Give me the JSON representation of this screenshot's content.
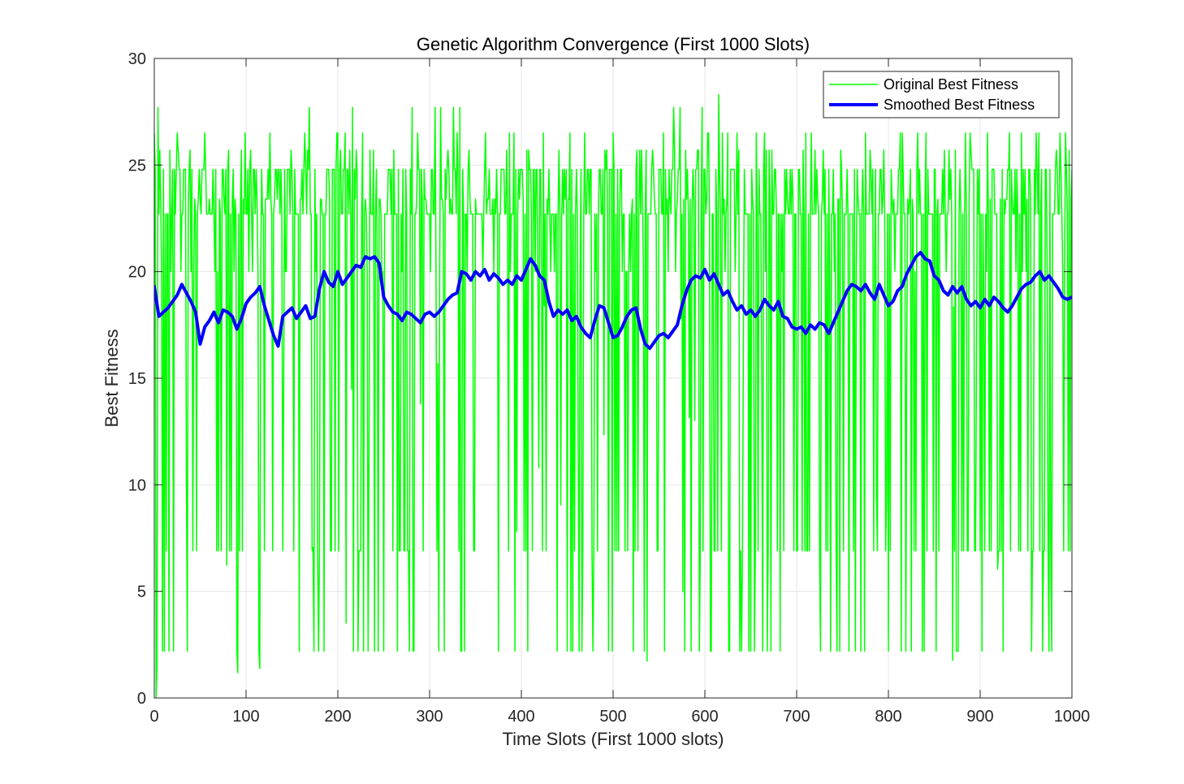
{
  "chart_data": {
    "type": "line",
    "title": "Genetic Algorithm Convergence (First 1000 Slots)",
    "xlabel": "Time Slots (First 1000 slots)",
    "ylabel": "Best Fitness",
    "xlim": [
      0,
      1000
    ],
    "ylim": [
      0,
      30
    ],
    "xticks": [
      0,
      100,
      200,
      300,
      400,
      500,
      600,
      700,
      800,
      900,
      1000
    ],
    "yticks": [
      0,
      5,
      10,
      15,
      20,
      25,
      30
    ],
    "grid": true,
    "legend_position": "top-right",
    "series": [
      {
        "name": "Original Best Fitness",
        "color": "#00ff00",
        "line_width": "thin",
        "description_of_values": "noisy per-slot best fitness, 1000 points fluctuating mostly between about 2 and 27.5 with frequent plateaus near 22.7 and 24.8 and dips to about 6.9 and 2.2",
        "value_levels": [
          0.2,
          2.2,
          6.9,
          20.0,
          22.7,
          23.4,
          24.8,
          25.7,
          26.5,
          27.7,
          28.3
        ],
        "min": 0.0,
        "max": 28.3
      },
      {
        "name": "Smoothed Best Fitness",
        "color": "#0000ff",
        "line_width": "thick",
        "x": [
          0,
          5,
          10,
          15,
          20,
          25,
          30,
          35,
          40,
          45,
          50,
          55,
          60,
          65,
          70,
          75,
          80,
          85,
          90,
          95,
          100,
          105,
          110,
          115,
          120,
          125,
          130,
          135,
          140,
          145,
          150,
          155,
          160,
          165,
          170,
          175,
          180,
          185,
          190,
          195,
          200,
          205,
          210,
          215,
          220,
          225,
          230,
          235,
          240,
          245,
          250,
          255,
          260,
          265,
          270,
          275,
          280,
          285,
          290,
          295,
          300,
          305,
          310,
          315,
          320,
          325,
          330,
          335,
          340,
          345,
          350,
          355,
          360,
          365,
          370,
          375,
          380,
          385,
          390,
          395,
          400,
          405,
          410,
          415,
          420,
          425,
          430,
          435,
          440,
          445,
          450,
          455,
          460,
          465,
          470,
          475,
          480,
          485,
          490,
          495,
          500,
          505,
          510,
          515,
          520,
          525,
          530,
          535,
          540,
          545,
          550,
          555,
          560,
          565,
          570,
          575,
          580,
          585,
          590,
          595,
          600,
          605,
          610,
          615,
          620,
          625,
          630,
          635,
          640,
          645,
          650,
          655,
          660,
          665,
          670,
          675,
          680,
          685,
          690,
          695,
          700,
          705,
          710,
          715,
          720,
          725,
          730,
          735,
          740,
          745,
          750,
          755,
          760,
          765,
          770,
          775,
          780,
          785,
          790,
          795,
          800,
          805,
          810,
          815,
          820,
          825,
          830,
          835,
          840,
          845,
          850,
          855,
          860,
          865,
          870,
          875,
          880,
          885,
          890,
          895,
          900,
          905,
          910,
          915,
          920,
          925,
          930,
          935,
          940,
          945,
          950,
          955,
          960,
          965,
          970,
          975,
          980,
          985,
          990,
          995,
          1000
        ],
        "values": [
          19.3,
          17.9,
          18.1,
          18.3,
          18.6,
          18.9,
          19.4,
          19.0,
          18.6,
          18.1,
          16.6,
          17.4,
          17.7,
          18.1,
          17.6,
          18.2,
          18.1,
          17.9,
          17.3,
          17.8,
          18.5,
          18.8,
          19.0,
          19.3,
          18.4,
          17.7,
          17.0,
          16.5,
          17.9,
          18.1,
          18.3,
          17.8,
          18.1,
          18.4,
          17.8,
          17.9,
          19.2,
          20.0,
          19.5,
          19.3,
          20.0,
          19.4,
          19.7,
          20.0,
          20.3,
          20.2,
          20.7,
          20.6,
          20.7,
          20.4,
          18.8,
          18.4,
          18.1,
          18.0,
          17.7,
          18.1,
          18.0,
          17.8,
          17.6,
          18.0,
          18.1,
          17.9,
          18.1,
          18.4,
          18.7,
          18.9,
          19.0,
          20.0,
          19.9,
          19.6,
          20.0,
          19.8,
          20.1,
          19.6,
          19.9,
          19.7,
          19.4,
          19.6,
          19.4,
          19.8,
          19.6,
          20.1,
          20.6,
          20.3,
          19.8,
          19.6,
          18.6,
          17.9,
          18.2,
          18.0,
          18.2,
          17.7,
          17.9,
          17.4,
          17.1,
          16.9,
          17.7,
          18.4,
          18.3,
          17.6,
          16.9,
          17.0,
          17.4,
          17.9,
          18.2,
          18.3,
          17.3,
          16.6,
          16.4,
          16.7,
          17.0,
          17.1,
          16.9,
          17.2,
          17.5,
          18.4,
          19.1,
          19.6,
          19.8,
          19.7,
          20.1,
          19.6,
          19.9,
          19.4,
          18.9,
          19.1,
          18.6,
          18.2,
          18.4,
          18.0,
          18.2,
          17.9,
          18.2,
          18.7,
          18.4,
          18.2,
          18.6,
          17.9,
          17.8,
          17.4,
          17.3,
          17.4,
          17.1,
          17.5,
          17.3,
          17.6,
          17.5,
          17.1,
          17.6,
          18.1,
          18.6,
          19.1,
          19.4,
          19.3,
          19.1,
          19.4,
          19.0,
          18.7,
          19.4,
          18.9,
          18.4,
          18.6,
          19.1,
          19.3,
          19.9,
          20.3,
          20.7,
          20.9,
          20.6,
          20.5,
          19.8,
          19.6,
          19.1,
          18.9,
          19.3,
          19.0,
          19.3,
          18.7,
          18.4,
          18.6,
          18.3,
          18.7,
          18.4,
          18.8,
          18.6,
          18.3,
          18.1,
          18.4,
          18.8,
          19.2,
          19.4,
          19.5,
          19.8,
          20.0,
          19.6,
          19.8,
          19.5,
          19.2,
          18.8,
          18.7,
          18.8
        ]
      }
    ]
  }
}
